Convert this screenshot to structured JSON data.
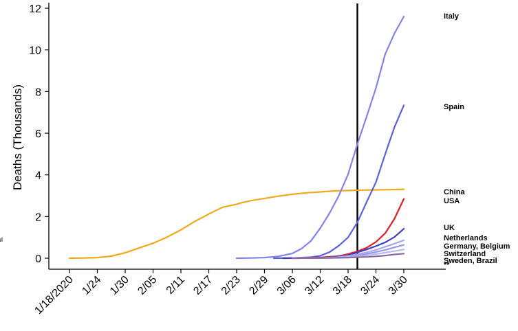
{
  "chart_data": {
    "type": "line",
    "ylabel": "Deaths (Thousands)",
    "xlabel": "",
    "title": "",
    "ylim": [
      0,
      12
    ],
    "yticks": [
      0,
      2,
      4,
      6,
      8,
      10,
      12
    ],
    "xlim": [
      -3,
      74
    ],
    "x_tick_positions": [
      0,
      6,
      12,
      18,
      24,
      30,
      36,
      42,
      48,
      54,
      60,
      66,
      72
    ],
    "x_tick_labels": [
      "1/18/2020",
      "1/24",
      "1/30",
      "2/05",
      "2/11",
      "2/17",
      "2/23",
      "2/29",
      "3/06",
      "3/12",
      "3/18",
      "3/24",
      "3/30"
    ],
    "vline_x": 62,
    "grid": false,
    "legend": "none",
    "left_edge_fragment": "ul",
    "extra_label": "**",
    "series": [
      {
        "name": "China",
        "color": "#f0a818",
        "x": [
          0,
          3,
          6,
          9,
          12,
          15,
          18,
          21,
          24,
          27,
          30,
          33,
          36,
          37,
          39,
          42,
          45,
          48,
          51,
          54,
          57,
          60,
          63,
          66,
          69,
          72
        ],
        "y": [
          0,
          0.01,
          0.03,
          0.1,
          0.26,
          0.49,
          0.72,
          1.01,
          1.36,
          1.77,
          2.12,
          2.45,
          2.59,
          2.66,
          2.76,
          2.87,
          2.98,
          3.07,
          3.14,
          3.18,
          3.23,
          3.25,
          3.27,
          3.28,
          3.29,
          3.31
        ]
      },
      {
        "name": "Italy",
        "color": "#8082ea",
        "x": [
          36,
          39,
          42,
          45,
          48,
          50,
          52,
          54,
          56,
          58,
          60,
          62,
          64,
          66,
          68,
          70,
          72
        ],
        "y": [
          0,
          0.01,
          0.03,
          0.09,
          0.23,
          0.46,
          0.83,
          1.44,
          2.16,
          3.0,
          4.03,
          5.48,
          6.8,
          8.17,
          9.8,
          10.8,
          11.6
        ]
      },
      {
        "name": "Spain",
        "color": "#5a5ee2",
        "x": [
          44,
          48,
          52,
          54,
          56,
          58,
          60,
          62,
          64,
          66,
          68,
          70,
          72
        ],
        "y": [
          0,
          0.01,
          0.05,
          0.12,
          0.29,
          0.6,
          1.0,
          1.72,
          2.7,
          3.65,
          5.0,
          6.3,
          7.34
        ]
      },
      {
        "name": "USA",
        "color": "#e02020",
        "x": [
          46,
          50,
          54,
          58,
          60,
          62,
          64,
          66,
          68,
          70,
          72
        ],
        "y": [
          0,
          0.01,
          0.04,
          0.1,
          0.2,
          0.33,
          0.5,
          0.78,
          1.2,
          1.9,
          2.85
        ]
      },
      {
        "name": "UK",
        "color": "#3a3ec8",
        "x": [
          46,
          52,
          56,
          60,
          62,
          64,
          66,
          68,
          70,
          72
        ],
        "y": [
          0,
          0.01,
          0.04,
          0.14,
          0.28,
          0.42,
          0.58,
          0.76,
          1.02,
          1.41
        ]
      },
      {
        "name": "Netherlands",
        "color": "#a8a6ee",
        "x": [
          48,
          54,
          58,
          62,
          64,
          66,
          68,
          70,
          72
        ],
        "y": [
          0,
          0.01,
          0.05,
          0.18,
          0.28,
          0.4,
          0.55,
          0.7,
          0.86
        ]
      },
      {
        "name": "Germany, Belgium",
        "color": "#9897e6",
        "x": [
          48,
          54,
          58,
          62,
          64,
          66,
          68,
          70,
          72
        ],
        "y": [
          0,
          0.01,
          0.04,
          0.12,
          0.2,
          0.3,
          0.4,
          0.52,
          0.64
        ]
      },
      {
        "name": "Switzerland",
        "color": "#b8b6f0",
        "x": [
          48,
          54,
          58,
          62,
          64,
          66,
          68,
          70,
          72
        ],
        "y": [
          0,
          0.01,
          0.03,
          0.08,
          0.13,
          0.2,
          0.27,
          0.34,
          0.42
        ]
      },
      {
        "name": "Sweden, Brazil",
        "color": "#8a6aa0",
        "x": [
          48,
          56,
          60,
          64,
          66,
          68,
          70,
          72
        ],
        "y": [
          0,
          0.01,
          0.03,
          0.06,
          0.09,
          0.13,
          0.18,
          0.22
        ]
      }
    ]
  }
}
